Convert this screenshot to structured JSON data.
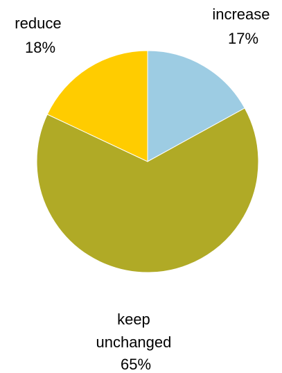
{
  "chart_data": {
    "type": "pie",
    "title": "",
    "start_angle_deg": 0,
    "direction": "clockwise",
    "slices": [
      {
        "label": [
          "increase"
        ],
        "percent_label": "17%",
        "value": 17,
        "color": "#9DCCE3"
      },
      {
        "label": [
          "keep",
          "unchanged"
        ],
        "percent_label": "65%",
        "value": 65,
        "color": "#B0AA26"
      },
      {
        "label": [
          "reduce"
        ],
        "percent_label": "18%",
        "value": 18,
        "color": "#FFCC00"
      }
    ],
    "legend": "none"
  }
}
